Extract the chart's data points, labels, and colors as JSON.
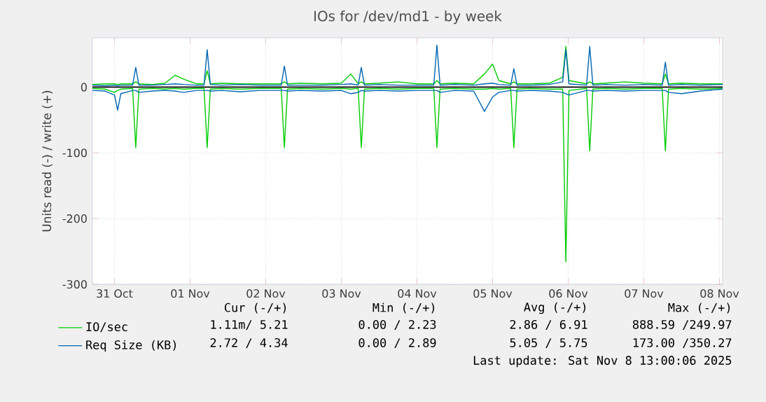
{
  "chart_data": {
    "type": "line",
    "title": "IOs for /dev/md1 - by week",
    "ylabel": "Units read (-) / write (+)",
    "x": [
      "2025-10-31T05:00",
      "2025-10-31T09:00",
      "2025-10-31T12:00",
      "2025-10-31T13:00",
      "2025-10-31T14:00",
      "2025-10-31T17:45",
      "2025-10-31T18:45",
      "2025-10-31T19:45",
      "2025-11-01T00:00",
      "2025-11-01T04:00",
      "2025-11-01T07:15",
      "2025-11-01T10:00",
      "2025-11-01T14:00",
      "2025-11-01T16:25",
      "2025-11-01T17:25",
      "2025-11-01T18:25",
      "2025-11-01T22:00",
      "2025-11-02T04:00",
      "2025-11-02T10:00",
      "2025-11-02T16:55",
      "2025-11-02T17:55",
      "2025-11-02T18:55",
      "2025-11-02T23:00",
      "2025-11-03T06:00",
      "2025-11-03T12:00",
      "2025-11-03T15:00",
      "2025-11-03T17:20",
      "2025-11-03T18:20",
      "2025-11-03T19:20",
      "2025-11-04T00:00",
      "2025-11-04T06:00",
      "2025-11-04T12:00",
      "2025-11-04T17:20",
      "2025-11-04T18:20",
      "2025-11-04T19:20",
      "2025-11-05T00:00",
      "2025-11-05T06:00",
      "2025-11-05T09:25",
      "2025-11-05T12:00",
      "2025-11-05T14:00",
      "2025-11-05T17:45",
      "2025-11-05T18:45",
      "2025-11-05T19:45",
      "2025-11-06T00:00",
      "2025-11-06T06:00",
      "2025-11-06T10:15",
      "2025-11-06T11:15",
      "2025-11-06T12:15",
      "2025-11-06T17:50",
      "2025-11-06T18:50",
      "2025-11-06T19:50",
      "2025-11-07T00:00",
      "2025-11-07T06:00",
      "2025-11-07T12:00",
      "2025-11-07T17:50",
      "2025-11-07T18:50",
      "2025-11-07T19:50",
      "2025-11-08T00:00",
      "2025-11-08T06:00",
      "2025-11-08T13:00"
    ],
    "series": [
      {
        "name": "IO/sec",
        "color": "#00cc00",
        "values": [
          4,
          5,
          5,
          4,
          5,
          5,
          8,
          5,
          4,
          6,
          18,
          12,
          5,
          5,
          25,
          5,
          6,
          5,
          5,
          5,
          8,
          5,
          6,
          5,
          6,
          20,
          5,
          8,
          5,
          6,
          8,
          5,
          5,
          10,
          5,
          6,
          5,
          20,
          35,
          10,
          5,
          8,
          5,
          5,
          6,
          15,
          62,
          10,
          5,
          8,
          5,
          6,
          8,
          6,
          5,
          20,
          5,
          6,
          5,
          5
        ]
      },
      {
        "color": "#00cc00",
        "values": [
          -2,
          -3,
          -8,
          -5,
          -3,
          -2,
          -92,
          -3,
          -2,
          -3,
          -2,
          -3,
          -2,
          -2,
          -92,
          -3,
          -2,
          -3,
          -2,
          -2,
          -92,
          -3,
          -2,
          -3,
          -2,
          -3,
          -2,
          -92,
          -3,
          -2,
          -3,
          -2,
          -2,
          -92,
          -3,
          -2,
          -3,
          -3,
          -2,
          -3,
          -2,
          -92,
          -3,
          -2,
          -3,
          -3,
          -266,
          -5,
          -2,
          -97,
          -3,
          -2,
          -3,
          -2,
          -2,
          -97,
          -3,
          -2,
          -3,
          -2
        ]
      },
      {
        "name": "Req Size (KB)",
        "color": "#0066b3",
        "values": [
          3,
          2,
          3,
          2,
          3,
          3,
          30,
          3,
          3,
          4,
          5,
          4,
          3,
          3,
          57,
          4,
          3,
          4,
          3,
          3,
          32,
          3,
          3,
          3,
          4,
          5,
          3,
          30,
          3,
          4,
          3,
          3,
          3,
          64,
          3,
          4,
          3,
          5,
          6,
          4,
          3,
          28,
          3,
          3,
          4,
          8,
          57,
          5,
          3,
          62,
          3,
          4,
          3,
          4,
          3,
          38,
          3,
          4,
          3,
          4
        ]
      },
      {
        "color": "#0066b3",
        "values": [
          -5,
          -6,
          -12,
          -35,
          -10,
          -5,
          -5,
          -8,
          -6,
          -5,
          -6,
          -8,
          -5,
          -5,
          -5,
          -6,
          -5,
          -7,
          -5,
          -5,
          -5,
          -6,
          -5,
          -6,
          -5,
          -10,
          -8,
          -5,
          -6,
          -5,
          -6,
          -5,
          -5,
          -5,
          -8,
          -5,
          -6,
          -37,
          -15,
          -8,
          -5,
          -5,
          -6,
          -5,
          -6,
          -8,
          -10,
          -12,
          -5,
          -5,
          -6,
          -5,
          -6,
          -5,
          -5,
          -5,
          -8,
          -10,
          -6,
          -3
        ]
      }
    ],
    "xlim": [
      "2025-10-31T05:00",
      "2025-11-08T13:00"
    ],
    "xticks": [
      {
        "value": "2025-10-31T12:00",
        "label": "31 Oct"
      },
      {
        "value": "2025-11-01T12:00",
        "label": "01 Nov"
      },
      {
        "value": "2025-11-02T12:00",
        "label": "02 Nov"
      },
      {
        "value": "2025-11-03T12:00",
        "label": "03 Nov"
      },
      {
        "value": "2025-11-04T12:00",
        "label": "04 Nov"
      },
      {
        "value": "2025-11-05T12:00",
        "label": "05 Nov"
      },
      {
        "value": "2025-11-06T12:00",
        "label": "06 Nov"
      },
      {
        "value": "2025-11-07T12:00",
        "label": "07 Nov"
      },
      {
        "value": "2025-11-08T12:00",
        "label": "08 Nov"
      }
    ],
    "ylim": [
      -300,
      75
    ],
    "yticks": [
      -300,
      -200,
      -100,
      0
    ],
    "grid": true,
    "legend": "bottom left",
    "annotations": [
      "Cur (-/+)",
      "Min (-/+)",
      "Avg (-/+)",
      "Max (-/+)",
      "1.11m/ 5.21",
      "0.00 / 2.23",
      "2.86 / 6.91",
      "888.59 /249.97",
      "2.72 / 4.34",
      "0.00 / 2.89",
      "5.05 / 5.75",
      "173.00 /350.27",
      "Last update: Sat Nov 8 13:00:06 2025"
    ]
  }
}
